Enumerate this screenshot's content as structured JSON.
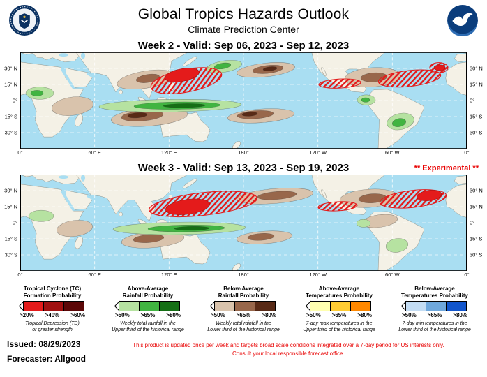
{
  "header": {
    "title": "Global Tropics Hazards Outlook",
    "subtitle": "Climate Prediction Center",
    "left_logo": "us-department-of-commerce-seal",
    "right_logo": "noaa-emblem"
  },
  "axes": {
    "lat_labels": [
      "30° N",
      "15° N",
      "0°",
      "15° S",
      "30° S"
    ],
    "lon_labels": [
      "0°",
      "60° E",
      "120° E",
      "180°",
      "120° W",
      "60° W",
      "0°"
    ]
  },
  "palette": {
    "ocean": "#a9def2",
    "land": "#f4f1e6",
    "tc_red": "#e41b1b",
    "rain_above": [
      "#b6e2a1",
      "#41b441",
      "#156f15"
    ],
    "rain_below": [
      "#d9c3ac",
      "#98674b",
      "#582a16"
    ],
    "accent_red": "#e80000"
  },
  "maps": [
    {
      "title": "Week 2 - Valid: Sep 06, 2023 - Sep 12, 2023",
      "experimental": "",
      "regions": [
        {
          "t": "rb1",
          "e": [
            75,
            95,
            30,
            16,
            -10
          ]
        },
        {
          "t": "rb1",
          "e": [
            185,
            114,
            55,
            16,
            -6
          ]
        },
        {
          "t": "rb2",
          "e": [
            175,
            112,
            30,
            9,
            -6
          ]
        },
        {
          "t": "rb3",
          "e": [
            168,
            111,
            14,
            4.5,
            -6
          ]
        },
        {
          "t": "rb1",
          "e": [
            180,
            48,
            42,
            15,
            -12
          ]
        },
        {
          "t": "rb2",
          "e": [
            183,
            46,
            17,
            7,
            -12
          ]
        },
        {
          "t": "ra1",
          "e": [
            28,
            72,
            20,
            11,
            0
          ]
        },
        {
          "t": "ra2",
          "e": [
            24,
            72,
            9,
            5,
            0
          ]
        },
        {
          "t": "ra1",
          "e": [
            215,
            94,
            102,
            11,
            -1
          ]
        },
        {
          "t": "ra2",
          "e": [
            225,
            94,
            62,
            6.5,
            -1
          ]
        },
        {
          "t": "ra3",
          "e": [
            235,
            94,
            30,
            3.5,
            -1
          ]
        },
        {
          "t": "ra1",
          "e": [
            292,
            25,
            26,
            10,
            -12
          ]
        },
        {
          "t": "ra2",
          "e": [
            290,
            24,
            12,
            5,
            -12
          ]
        },
        {
          "t": "rb1",
          "e": [
            352,
            31,
            42,
            12,
            -8
          ]
        },
        {
          "t": "rb2",
          "e": [
            355,
            30,
            22,
            7,
            -8
          ]
        },
        {
          "t": "rb3",
          "e": [
            358,
            29,
            10,
            3.5,
            -8
          ]
        },
        {
          "t": "rb1",
          "e": [
            345,
            112,
            48,
            12,
            -5
          ]
        },
        {
          "t": "rb2",
          "e": [
            337,
            110,
            26,
            7,
            -5
          ]
        },
        {
          "t": "rb3",
          "e": [
            329,
            109,
            11,
            3.5,
            -5
          ]
        },
        {
          "t": "rb1",
          "e": [
            505,
            44,
            40,
            17,
            -5
          ]
        },
        {
          "t": "rb2",
          "e": [
            507,
            44,
            19,
            8,
            -5
          ]
        },
        {
          "t": "ra1",
          "e": [
            496,
            84,
            13,
            9,
            0
          ]
        },
        {
          "t": "ra2",
          "e": [
            495,
            84,
            6,
            4,
            0
          ]
        },
        {
          "t": "ra1",
          "e": [
            545,
            122,
            20,
            14,
            -20
          ]
        },
        {
          "t": "ra2",
          "e": [
            543,
            124,
            10,
            7,
            -20
          ]
        },
        {
          "t": "tch",
          "e": [
            238,
            50,
            52,
            20,
            -14
          ]
        },
        {
          "t": "tcs",
          "e": [
            232,
            40,
            25,
            11,
            -14
          ]
        },
        {
          "t": "tch",
          "e": [
            458,
            55,
            30,
            8,
            -4
          ]
        },
        {
          "t": "tch",
          "e": [
            558,
            46,
            45,
            14,
            -8
          ]
        },
        {
          "t": "tch",
          "e": [
            600,
            27,
            13,
            9,
            0
          ]
        },
        {
          "t": "tcs",
          "e": [
            601,
            27,
            8,
            5,
            0
          ]
        }
      ]
    },
    {
      "title": "Week 3 - Valid: Sep 13, 2023 - Sep 19, 2023",
      "experimental": "** Experimental **",
      "regions": [
        {
          "t": "rb1",
          "e": [
            78,
            95,
            26,
            14,
            -10
          ]
        },
        {
          "t": "ra1",
          "e": [
            30,
            73,
            18,
            10,
            0
          ]
        },
        {
          "t": "rb1",
          "e": [
            190,
            115,
            45,
            14,
            -6
          ]
        },
        {
          "t": "rb2",
          "e": [
            184,
            113,
            22,
            7,
            -6
          ]
        },
        {
          "t": "ra1",
          "e": [
            228,
            95,
            95,
            11,
            -1
          ]
        },
        {
          "t": "ra2",
          "e": [
            238,
            95,
            55,
            6,
            -1
          ]
        },
        {
          "t": "ra3",
          "e": [
            246,
            95,
            25,
            3.5,
            -1
          ]
        },
        {
          "t": "rb1",
          "e": [
            365,
            38,
            55,
            13,
            -6
          ]
        },
        {
          "t": "rb2",
          "e": [
            368,
            37,
            28,
            7,
            -6
          ]
        },
        {
          "t": "rb1",
          "e": [
            350,
            111,
            40,
            11,
            -5
          ]
        },
        {
          "t": "rb2",
          "e": [
            345,
            110,
            19,
            6,
            -5
          ]
        },
        {
          "t": "rb1",
          "e": [
            500,
            42,
            42,
            16,
            -5
          ]
        },
        {
          "t": "rb2",
          "e": [
            505,
            42,
            20,
            8,
            -5
          ]
        },
        {
          "t": "rb1",
          "e": [
            515,
            82,
            26,
            11,
            -10
          ]
        },
        {
          "t": "ra1",
          "e": [
            492,
            86,
            10,
            7,
            0
          ]
        },
        {
          "t": "ra1",
          "e": [
            540,
            125,
            16,
            12,
            -15
          ]
        },
        {
          "t": "tch",
          "e": [
            262,
            52,
            78,
            20,
            -8
          ]
        },
        {
          "t": "tcs",
          "e": [
            240,
            57,
            32,
            13,
            -10
          ]
        },
        {
          "t": "tch",
          "e": [
            455,
            56,
            28,
            8,
            -4
          ]
        },
        {
          "t": "tch",
          "e": [
            563,
            43,
            48,
            15,
            -8
          ]
        },
        {
          "t": "tcs",
          "e": [
            586,
            37,
            18,
            9,
            -10
          ]
        }
      ]
    }
  ],
  "legend": {
    "groups": [
      {
        "title_lines": [
          "Tropical Cyclone (TC)",
          "Formation Probability"
        ],
        "labels": [
          ">20%",
          ">40%",
          ">60%"
        ],
        "colors": [
          "#e41b1b",
          "#a01010",
          "#5c0707"
        ],
        "desc_lines": [
          "Tropical Depression (TD)",
          "or greater strength"
        ]
      },
      {
        "title_lines": [
          "Above-Average",
          "Rainfall Probability"
        ],
        "labels": [
          ">50%",
          ">65%",
          ">80%"
        ],
        "colors": [
          "#b6e2a1",
          "#41b441",
          "#156f15"
        ],
        "desc_lines": [
          "Weekly total rainfall in the",
          "Upper third of the historical range"
        ]
      },
      {
        "title_lines": [
          "Below-Average",
          "Rainfall Probability"
        ],
        "labels": [
          ">50%",
          ">65%",
          ">80%"
        ],
        "colors": [
          "#d9c3ac",
          "#98674b",
          "#582a16"
        ],
        "desc_lines": [
          "Weekly total rainfall in the",
          "Lower third of the historical range"
        ]
      },
      {
        "title_lines": [
          "Above-Average",
          "Temperatures Probability"
        ],
        "labels": [
          ">50%",
          ">65%",
          ">80%"
        ],
        "colors": [
          "#ffffb0",
          "#ffcc33",
          "#ff8800"
        ],
        "desc_lines": [
          "7-day max temperatures in the",
          "Upper third of the historical range"
        ]
      },
      {
        "title_lines": [
          "Below-Average",
          "Temperatures Probability"
        ],
        "labels": [
          ">50%",
          ">65%",
          ">80%"
        ],
        "colors": [
          "#c3dcf3",
          "#6fa8dc",
          "#1155cc"
        ],
        "desc_lines": [
          "7-day min temperatures in the",
          "Lower third of the historical range"
        ]
      }
    ]
  },
  "footer": {
    "issued": "Issued: 08/29/2023",
    "forecaster": "Forecaster: Allgood",
    "disclaimer_lines": [
      "This product is updated once per week and targets broad scale conditions integrated over a 7-day period for US interests only.",
      "Consult your local responsible forecast office."
    ]
  }
}
